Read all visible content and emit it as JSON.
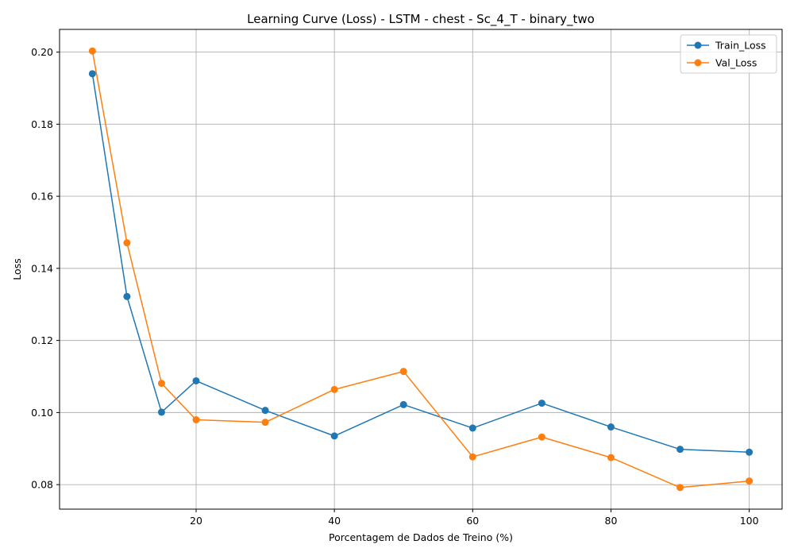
{
  "chart_data": {
    "type": "line",
    "title": "Learning Curve (Loss) - LSTM - chest - Sc_4_T - binary_two",
    "xlabel": "Porcentagem de Dados de Treino (%)",
    "ylabel": "Loss",
    "x": [
      5,
      10,
      15,
      20,
      30,
      40,
      50,
      60,
      70,
      80,
      90,
      100
    ],
    "xlim": [
      0.25,
      104.75
    ],
    "ylim": [
      0.0732,
      0.2063
    ],
    "xticks": [
      20,
      40,
      60,
      80,
      100
    ],
    "yticks": [
      0.08,
      0.1,
      0.12,
      0.14,
      0.16,
      0.18,
      0.2
    ],
    "xtick_labels": [
      "20",
      "40",
      "60",
      "80",
      "100"
    ],
    "ytick_labels": [
      "0.08",
      "0.10",
      "0.12",
      "0.14",
      "0.16",
      "0.18",
      "0.20"
    ],
    "grid": true,
    "legend_position": "upper right",
    "series": [
      {
        "name": "Train_Loss",
        "color": "#1f77b4",
        "values": [
          0.194,
          0.1322,
          0.1001,
          0.1088,
          0.1006,
          0.0935,
          0.1022,
          0.0957,
          0.1026,
          0.096,
          0.0898,
          0.089
        ]
      },
      {
        "name": "Val_Loss",
        "color": "#ff7f0e",
        "values": [
          0.2003,
          0.1471,
          0.1081,
          0.098,
          0.0973,
          0.1064,
          0.1114,
          0.0877,
          0.0932,
          0.0875,
          0.0792,
          0.081
        ]
      }
    ]
  }
}
